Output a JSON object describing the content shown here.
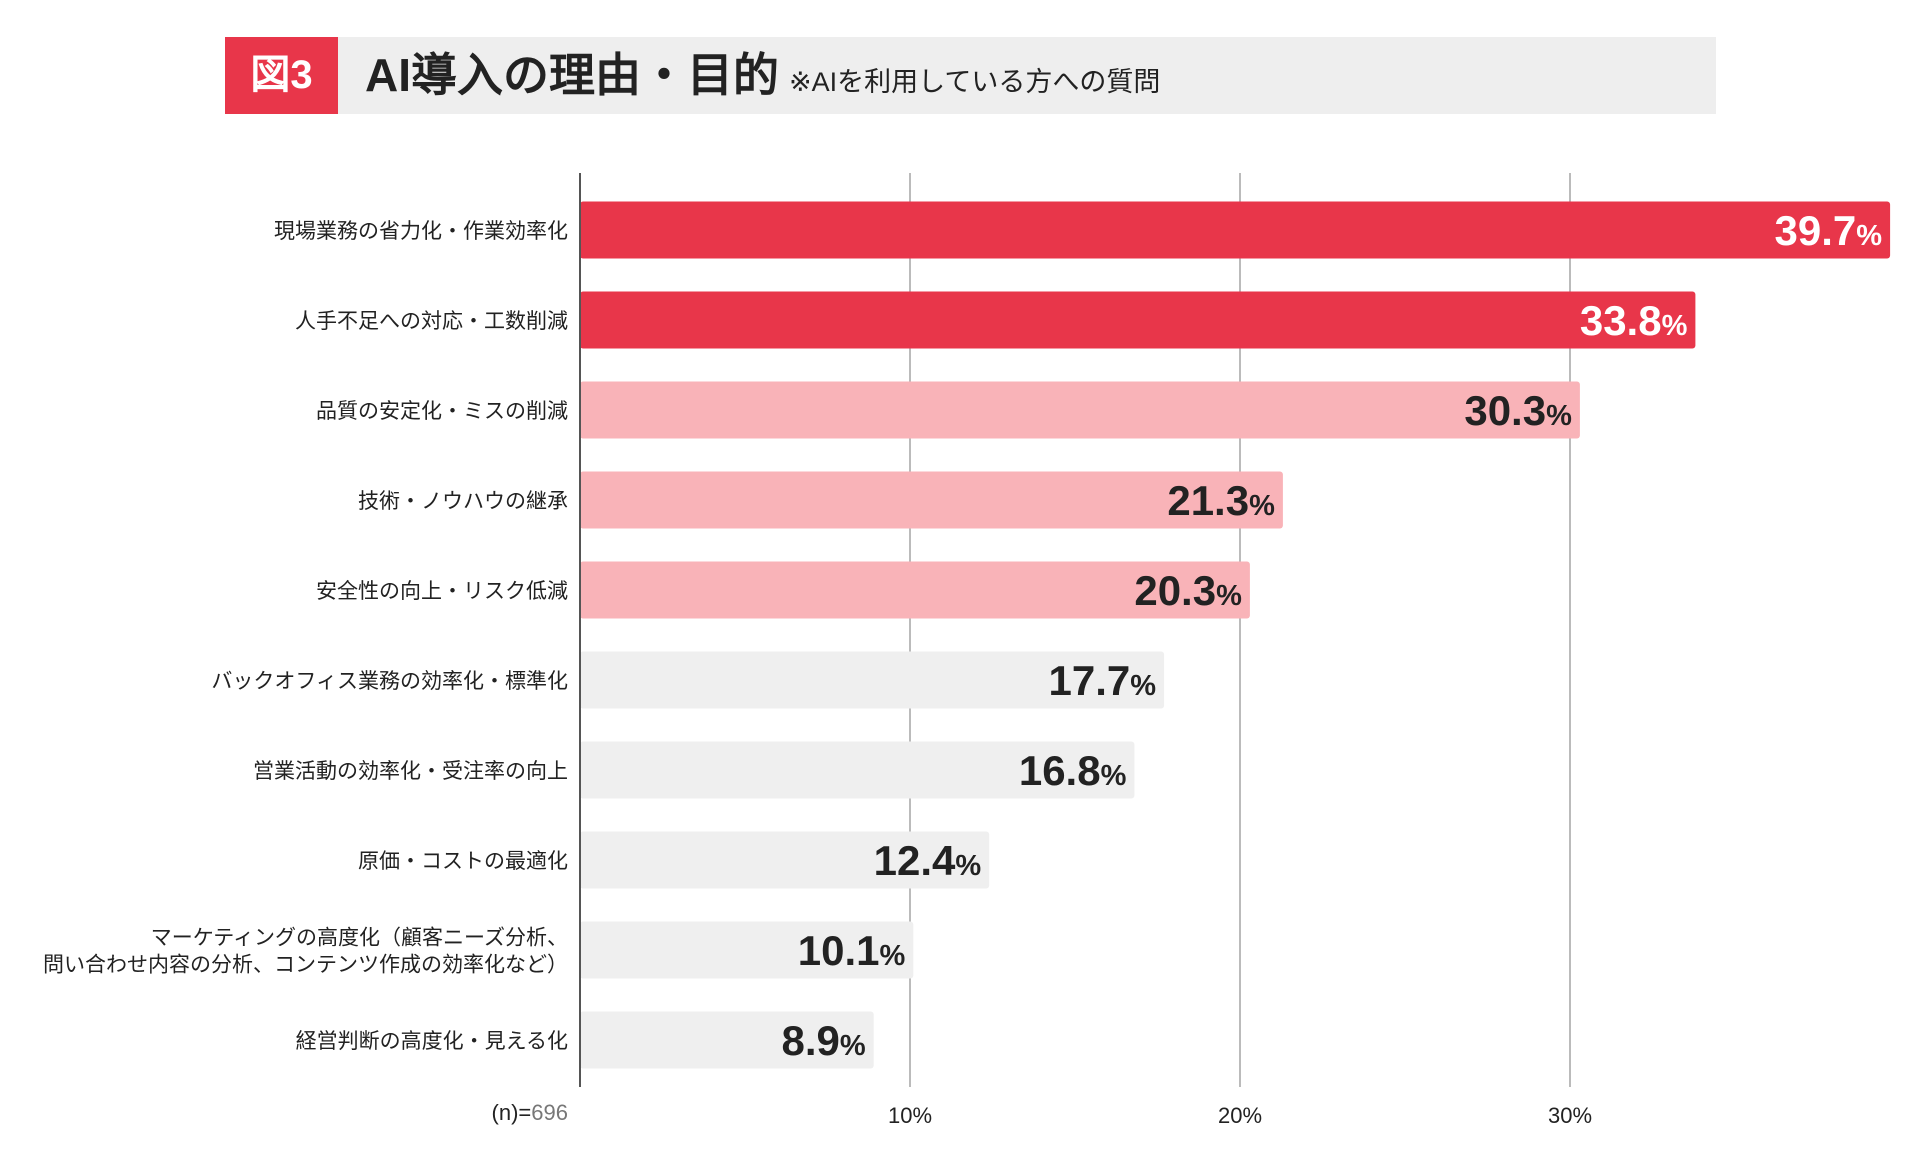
{
  "header": {
    "figure_label": "図3",
    "title": "AI導入の理由・目的",
    "subtitle": "※AIを利用している方への質問"
  },
  "colors": {
    "top": "#e8364a",
    "mid": "#f9b3b8",
    "rest": "#efefef",
    "axis": "#555555",
    "grid": "#bbbbbb"
  },
  "chart_data": {
    "type": "bar",
    "orientation": "horizontal",
    "categories": [
      "現場業務の省力化・作業効率化",
      "人手不足への対応・工数削減",
      "品質の安定化・ミスの削減",
      "技術・ノウハウの継承",
      "安全性の向上・リスク低減",
      "バックオフィス業務の効率化・標準化",
      "営業活動の効率化・受注率の向上",
      "原価・コストの最適化",
      "マーケティングの高度化（顧客ニーズ分析、\n問い合わせ内容の分析、コンテンツ作成の効率化など）",
      "経営判断の高度化・見える化"
    ],
    "values": [
      39.7,
      33.8,
      30.3,
      21.3,
      20.3,
      17.7,
      16.8,
      12.4,
      10.1,
      8.9
    ],
    "color_groups": [
      "top",
      "top",
      "mid",
      "mid",
      "mid",
      "rest",
      "rest",
      "rest",
      "rest",
      "rest"
    ],
    "value_suffix": "%",
    "xlim": [
      0,
      40
    ],
    "xticks": [
      10,
      20,
      30
    ],
    "xtick_labels": [
      "10%",
      "20%",
      "30%"
    ],
    "grid": true,
    "sample_prefix": "(n)=",
    "sample_size": "696"
  }
}
